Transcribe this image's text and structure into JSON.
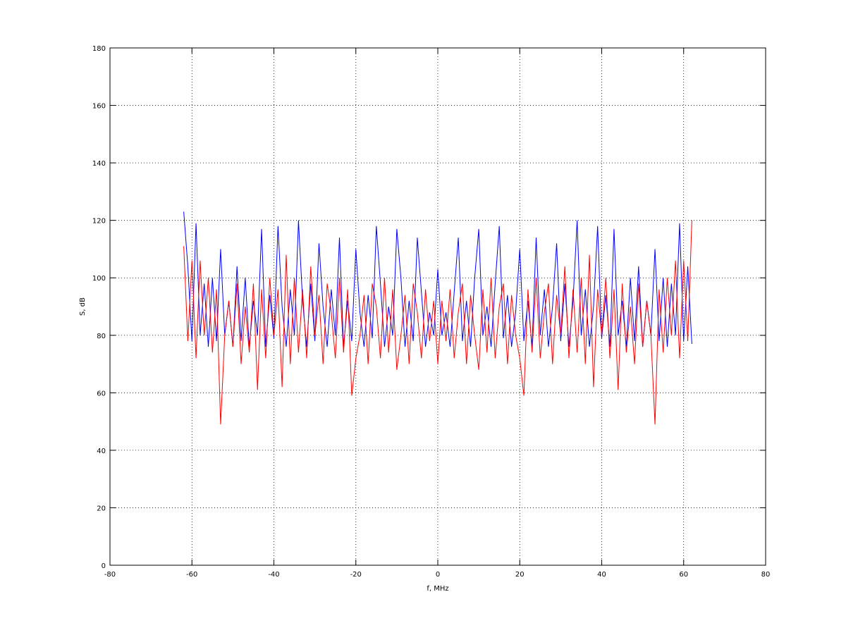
{
  "chart_data": {
    "type": "line",
    "xlabel": "f, MHz",
    "ylabel": "S, dB",
    "xlim": [
      -80,
      80
    ],
    "ylim": [
      0,
      180
    ],
    "xticks": [
      -80,
      -60,
      -40,
      -20,
      0,
      20,
      40,
      60,
      80
    ],
    "yticks": [
      0,
      20,
      40,
      60,
      80,
      100,
      120,
      140,
      160,
      180
    ],
    "grid": true,
    "x": [
      -62,
      -61,
      -60,
      -59,
      -58,
      -57,
      -56,
      -55,
      -54,
      -53,
      -52,
      -51,
      -50,
      -49,
      -48,
      -47,
      -46,
      -45,
      -44,
      -43,
      -42,
      -41,
      -40,
      -39,
      -38,
      -37,
      -36,
      -35,
      -34,
      -33,
      -32,
      -31,
      -30,
      -29,
      -28,
      -27,
      -26,
      -25,
      -24,
      -23,
      -22,
      -21,
      -20,
      -19,
      -18,
      -17,
      -16,
      -15,
      -14,
      -13,
      -12,
      -11,
      -10,
      -9,
      -8,
      -7,
      -6,
      -5,
      -4,
      -3,
      -2,
      -1,
      0,
      1,
      2,
      3,
      4,
      5,
      6,
      7,
      8,
      9,
      10,
      11,
      12,
      13,
      14,
      15,
      16,
      17,
      18,
      19,
      20,
      21,
      22,
      23,
      24,
      25,
      26,
      27,
      28,
      29,
      30,
      31,
      32,
      33,
      34,
      35,
      36,
      37,
      38,
      39,
      40,
      41,
      42,
      43,
      44,
      45,
      46,
      47,
      48,
      49,
      50,
      51,
      52,
      53,
      54,
      55,
      56,
      57,
      58,
      59,
      60,
      61,
      62
    ],
    "series": [
      {
        "color": "#0000ff",
        "values": [
          123,
          104,
          78,
          119,
          80,
          98,
          76,
          100,
          78,
          110,
          80,
          92,
          76,
          104,
          78,
          100,
          76,
          92,
          80,
          117,
          76,
          94,
          79,
          118,
          90,
          76,
          96,
          80,
          120,
          92,
          76,
          98,
          78,
          112,
          90,
          76,
          96,
          80,
          114,
          76,
          92,
          78,
          110,
          88,
          76,
          94,
          79,
          118,
          98,
          76,
          90,
          80,
          117,
          100,
          76,
          92,
          78,
          114,
          95,
          76,
          88,
          80,
          103,
          80,
          88,
          76,
          95,
          114,
          78,
          92,
          76,
          100,
          117,
          80,
          90,
          76,
          98,
          118,
          79,
          94,
          76,
          88,
          110,
          78,
          92,
          76,
          114,
          80,
          96,
          76,
          90,
          112,
          78,
          98,
          76,
          92,
          120,
          80,
          96,
          76,
          90,
          118,
          79,
          94,
          76,
          117,
          80,
          92,
          76,
          100,
          78,
          104,
          76,
          92,
          80,
          110,
          78,
          100,
          76,
          98,
          80,
          119,
          78,
          104,
          77
        ]
      },
      {
        "color": "#ff0000",
        "values": [
          111,
          78,
          106,
          72,
          106,
          80,
          100,
          74,
          96,
          49,
          80,
          92,
          76,
          98,
          70,
          90,
          74,
          98,
          61,
          96,
          72,
          100,
          80,
          96,
          62,
          108,
          70,
          100,
          74,
          96,
          72,
          104,
          80,
          94,
          70,
          98,
          88,
          72,
          100,
          74,
          96,
          59,
          72,
          80,
          94,
          70,
          98,
          90,
          72,
          100,
          74,
          96,
          68,
          80,
          94,
          70,
          98,
          88,
          72,
          96,
          78,
          92,
          70,
          92,
          78,
          96,
          72,
          88,
          98,
          70,
          94,
          80,
          68,
          96,
          74,
          100,
          72,
          90,
          98,
          70,
          94,
          80,
          72,
          59,
          96,
          74,
          100,
          72,
          88,
          98,
          70,
          94,
          80,
          104,
          72,
          96,
          74,
          100,
          70,
          108,
          62,
          96,
          80,
          100,
          72,
          96,
          61,
          98,
          74,
          90,
          70,
          98,
          76,
          92,
          80,
          49,
          96,
          74,
          100,
          80,
          106,
          72,
          106,
          78,
          120
        ]
      }
    ]
  }
}
